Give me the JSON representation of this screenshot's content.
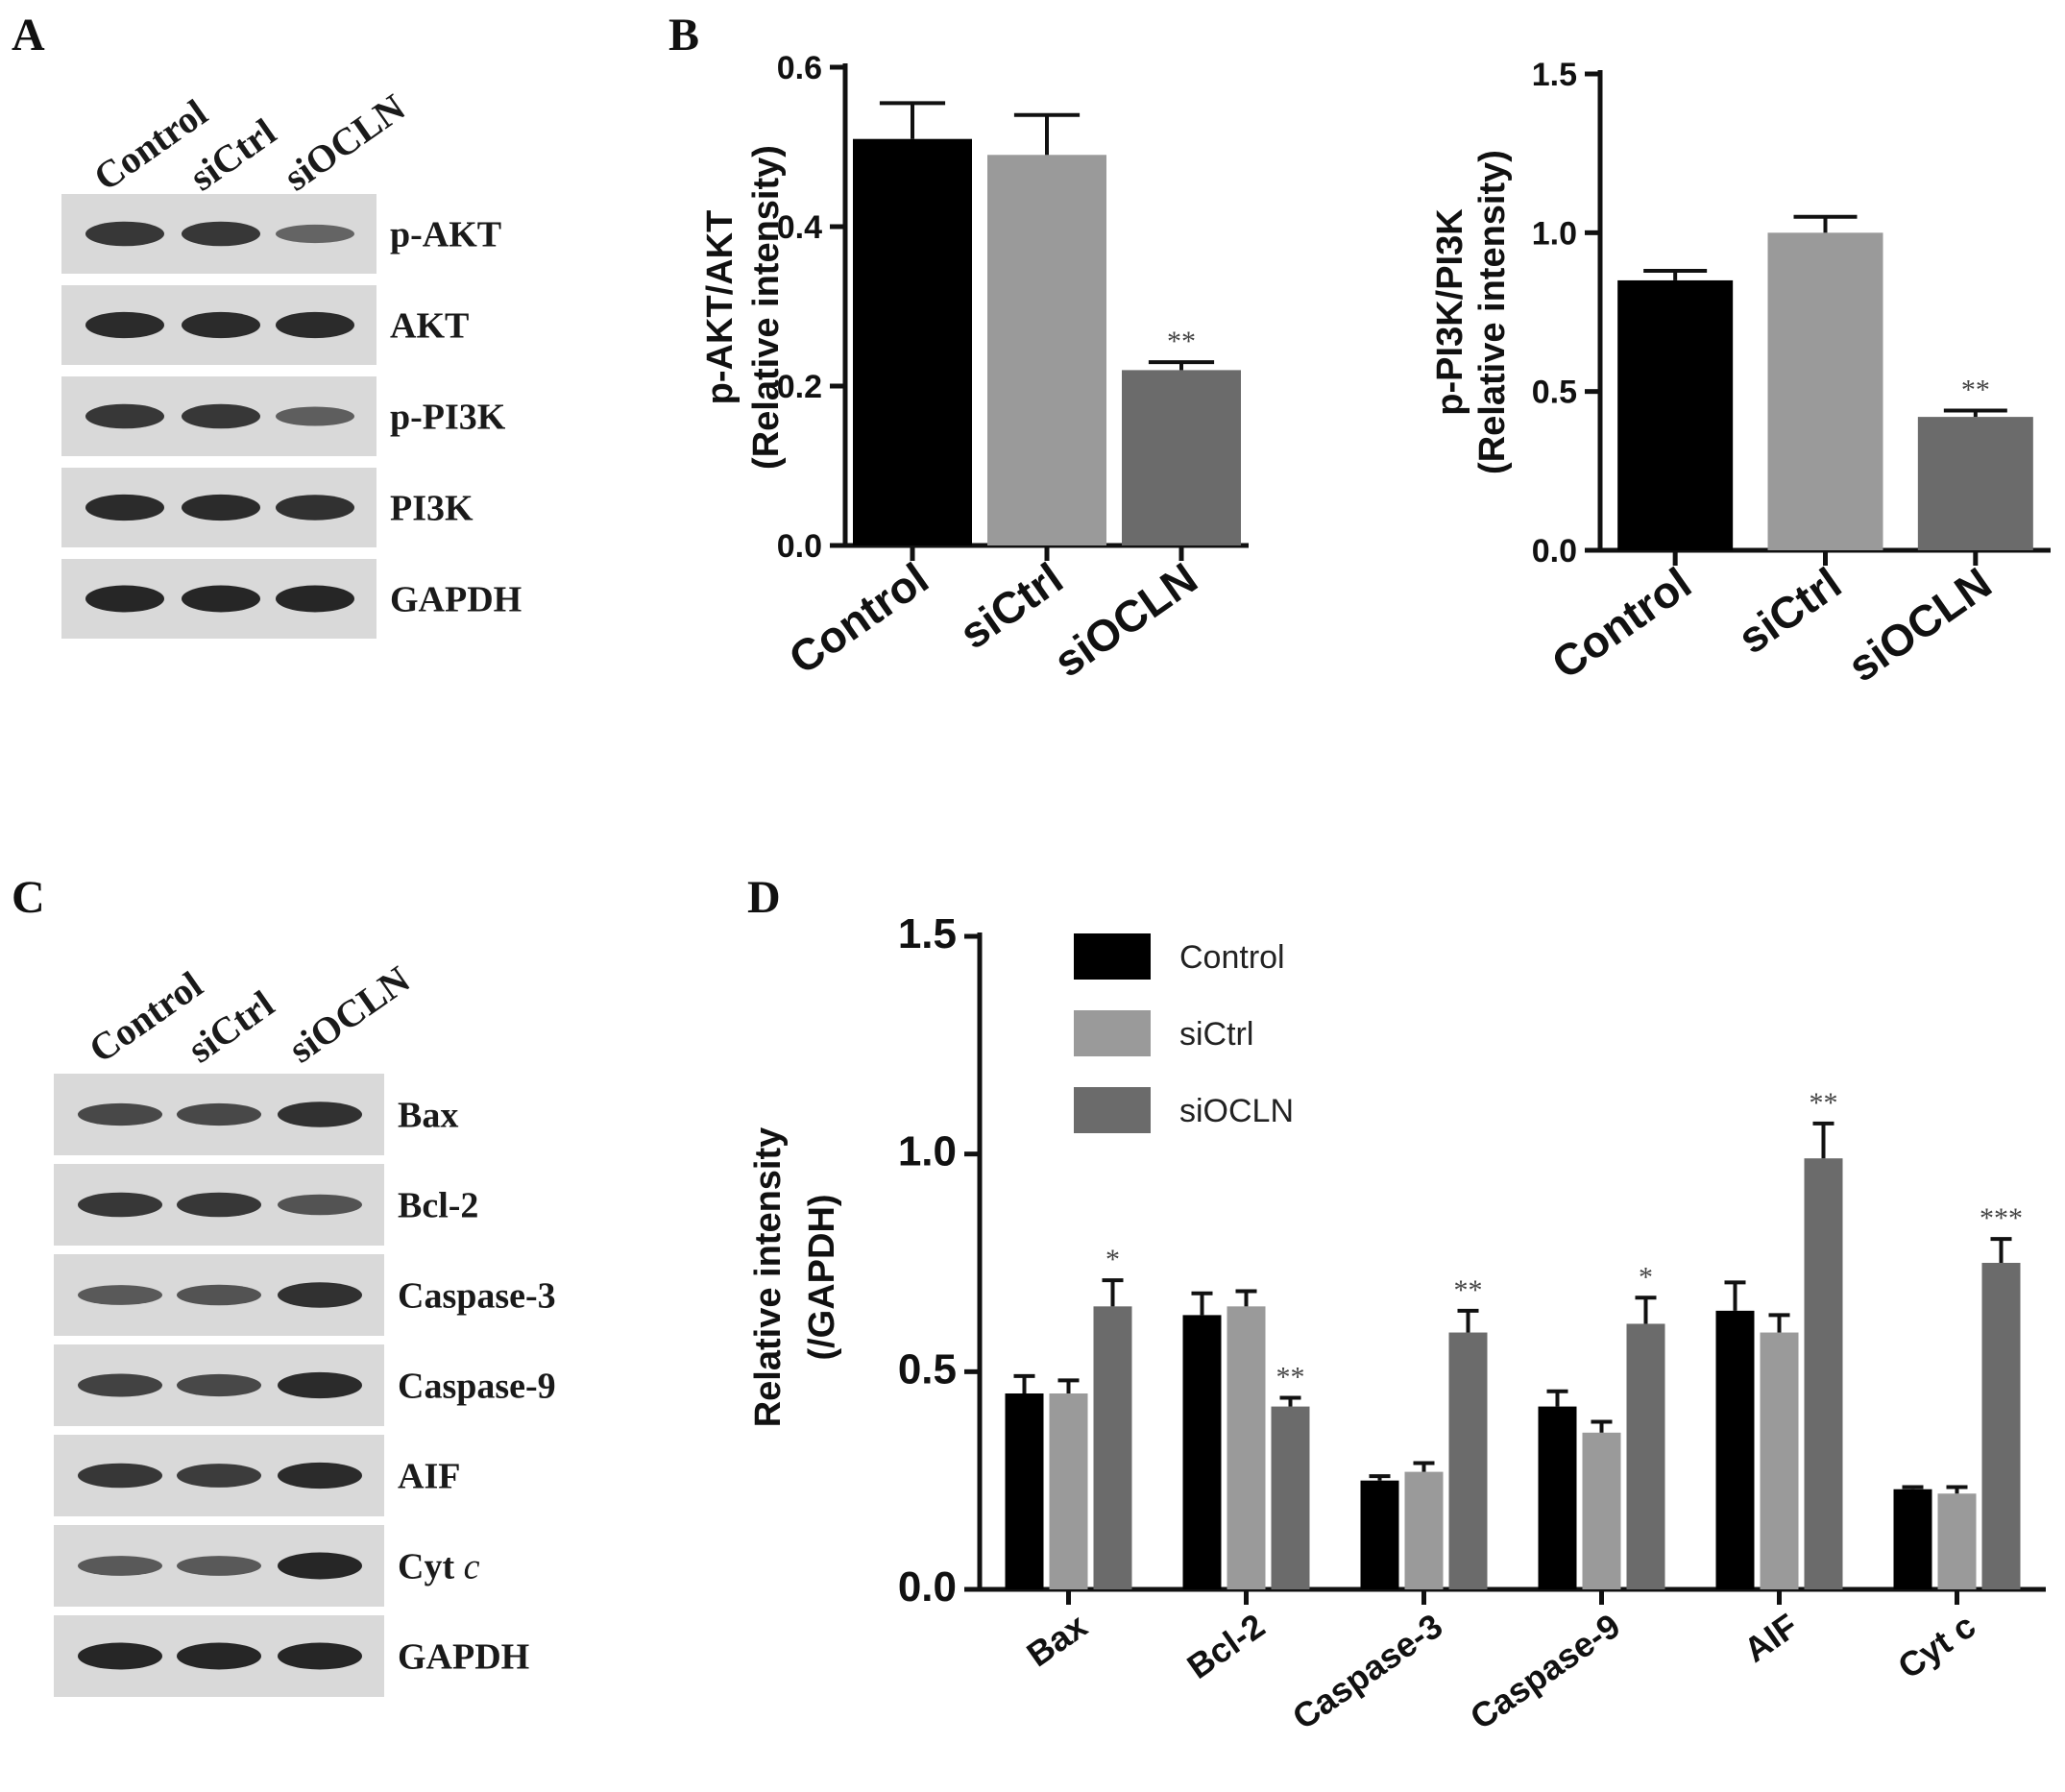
{
  "panels": {
    "A": {
      "label": "A",
      "lanes": [
        "Control",
        "siCtrl",
        "siOCLN"
      ],
      "blots": [
        {
          "name": "p-AKT",
          "intensity": [
            0.85,
            0.85,
            0.45
          ]
        },
        {
          "name": "AKT",
          "intensity": [
            0.95,
            0.95,
            0.95
          ]
        },
        {
          "name": "p-PI3K",
          "intensity": [
            0.85,
            0.85,
            0.5
          ]
        },
        {
          "name": "PI3K",
          "intensity": [
            0.95,
            0.95,
            0.9
          ]
        },
        {
          "name": "GAPDH",
          "intensity": [
            1.0,
            1.0,
            1.0
          ]
        }
      ]
    },
    "B": {
      "label": "B"
    },
    "C": {
      "label": "C",
      "lanes": [
        "Control",
        "siCtrl",
        "siOCLN"
      ],
      "blots": [
        {
          "name": "Bax",
          "intensity": [
            0.7,
            0.7,
            0.9
          ]
        },
        {
          "name": "Bcl-2",
          "intensity": [
            0.85,
            0.85,
            0.6
          ]
        },
        {
          "name": "Caspase-3",
          "intensity": [
            0.55,
            0.6,
            0.9
          ]
        },
        {
          "name": "Caspase-9",
          "intensity": [
            0.75,
            0.7,
            0.95
          ]
        },
        {
          "name": "AIF",
          "intensity": [
            0.85,
            0.8,
            0.95
          ]
        },
        {
          "name": "Cyt c",
          "name_main": "Cyt",
          "name_italic": "c",
          "intensity": [
            0.55,
            0.55,
            1.0
          ]
        },
        {
          "name": "GAPDH",
          "intensity": [
            1.0,
            1.0,
            1.0
          ]
        }
      ]
    },
    "D": {
      "label": "D"
    }
  },
  "colors": {
    "Control": "#000000",
    "siCtrl": "#9a9a9a",
    "siOCLN": "#6b6b6b"
  },
  "chart_data": [
    {
      "id": "B1",
      "type": "bar",
      "categories": [
        "Control",
        "siCtrl",
        "siOCLN"
      ],
      "values": [
        0.51,
        0.49,
        0.22
      ],
      "errors": [
        0.045,
        0.05,
        0.01
      ],
      "significance": [
        "",
        "",
        "**"
      ],
      "ylabel_lines": [
        "p-AKT/AKT",
        "(Relative intensity)"
      ],
      "ylim": [
        0,
        0.6
      ],
      "yticks": [
        0.0,
        0.2,
        0.4,
        0.6
      ],
      "ytick_labels": [
        "0.0",
        "0.2",
        "0.4",
        "0.6"
      ]
    },
    {
      "id": "B2",
      "type": "bar",
      "categories": [
        "Control",
        "siCtrl",
        "siOCLN"
      ],
      "values": [
        0.85,
        1.0,
        0.42
      ],
      "errors": [
        0.03,
        0.05,
        0.02
      ],
      "significance": [
        "",
        "",
        "**"
      ],
      "ylabel_lines": [
        "p-PI3K/PI3K",
        "(Relative intensity)"
      ],
      "ylim": [
        0,
        1.5
      ],
      "yticks": [
        0.0,
        0.5,
        1.0,
        1.5
      ],
      "ytick_labels": [
        "0.0",
        "0.5",
        "1.0",
        "1.5"
      ]
    },
    {
      "id": "D",
      "type": "bar",
      "categories": [
        "Bax",
        "Bcl-2",
        "Caspase-3",
        "Caspase-9",
        "AIF",
        "Cyt c"
      ],
      "series": [
        {
          "name": "Control",
          "values": [
            0.45,
            0.63,
            0.25,
            0.42,
            0.64,
            0.23
          ],
          "errors": [
            0.04,
            0.05,
            0.01,
            0.035,
            0.065,
            0.005
          ]
        },
        {
          "name": "siCtrl",
          "values": [
            0.45,
            0.65,
            0.27,
            0.36,
            0.59,
            0.22
          ],
          "errors": [
            0.03,
            0.035,
            0.02,
            0.025,
            0.04,
            0.015
          ]
        },
        {
          "name": "siOCLN",
          "values": [
            0.65,
            0.42,
            0.59,
            0.61,
            0.99,
            0.75
          ],
          "errors": [
            0.06,
            0.02,
            0.05,
            0.06,
            0.08,
            0.055
          ]
        }
      ],
      "significance": [
        "*",
        "**",
        "**",
        "*",
        "**",
        "***"
      ],
      "ylabel_lines": [
        "Relative intensity",
        "(/GAPDH)"
      ],
      "ylim": [
        0,
        1.5
      ],
      "yticks": [
        0.0,
        0.5,
        1.0,
        1.5
      ],
      "ytick_labels": [
        "0.0",
        "0.5",
        "1.0",
        "1.5"
      ],
      "legend_placement": "top-left"
    }
  ]
}
